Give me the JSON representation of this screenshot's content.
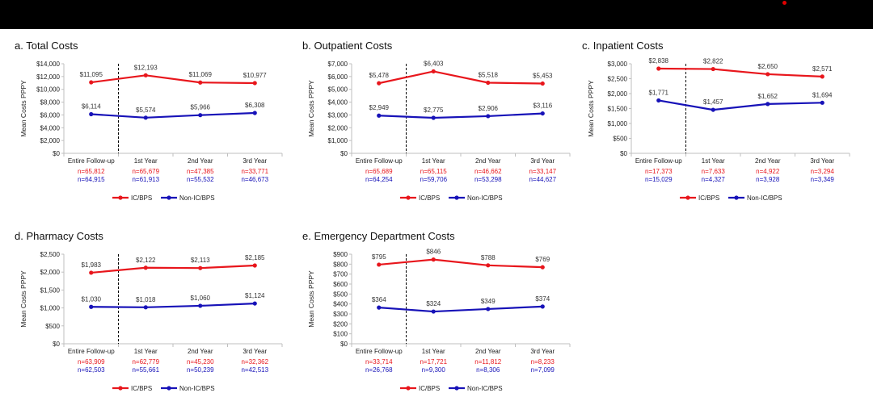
{
  "colors": {
    "series1": "#e8161c",
    "series2": "#1712b8"
  },
  "chart_data": [
    {
      "type": "line",
      "title": "a. Total Costs",
      "ylabel": "Mean Costs PPPY",
      "ylim": [
        0,
        14000
      ],
      "yticks": [
        "$0",
        "$2,000",
        "$4,000",
        "$6,000",
        "$8,000",
        "$10,000",
        "$12,000",
        "$14,000"
      ],
      "categories": [
        "Entire Follow-up",
        "1st Year",
        "2nd Year",
        "3rd Year"
      ],
      "series": [
        {
          "name": "IC/BPS",
          "values": [
            11095,
            12193,
            11069,
            10977
          ],
          "labels": [
            "$11,095",
            "$12,193",
            "$11,069",
            "$10,977"
          ],
          "n": [
            "n=65,812",
            "n=65,679",
            "n=47,385",
            "n=33,771"
          ]
        },
        {
          "name": "Non-IC/BPS",
          "values": [
            6114,
            5574,
            5966,
            6308
          ],
          "labels": [
            "$6,114",
            "$5,574",
            "$5,966",
            "$6,308"
          ],
          "n": [
            "n=64,915",
            "n=61,913",
            "n=55,532",
            "n=46,673"
          ]
        }
      ]
    },
    {
      "type": "line",
      "title": "b. Outpatient Costs",
      "ylabel": "Mean Costs PPPY",
      "ylim": [
        0,
        7000
      ],
      "yticks": [
        "$0",
        "$1,000",
        "$2,000",
        "$3,000",
        "$4,000",
        "$5,000",
        "$6,000",
        "$7,000"
      ],
      "categories": [
        "Entire Follow-up",
        "1st Year",
        "2nd Year",
        "3rd Year"
      ],
      "series": [
        {
          "name": "IC/BPS",
          "values": [
            5478,
            6403,
            5518,
            5453
          ],
          "labels": [
            "$5,478",
            "$6,403",
            "$5,518",
            "$5,453"
          ],
          "n": [
            "n=65,689",
            "n=65,115",
            "n=46,662",
            "n=33,147"
          ]
        },
        {
          "name": "Non-IC/BPS",
          "values": [
            2949,
            2775,
            2906,
            3116
          ],
          "labels": [
            "$2,949",
            "$2,775",
            "$2,906",
            "$3,116"
          ],
          "n": [
            "n=64,254",
            "n=59,706",
            "n=53,298",
            "n=44,627"
          ]
        }
      ]
    },
    {
      "type": "line",
      "title": "c. Inpatient Costs",
      "ylabel": "Mean Costs PPPY",
      "ylim": [
        0,
        3000
      ],
      "yticks": [
        "$0",
        "$500",
        "$1,000",
        "$1,500",
        "$2,000",
        "$2,500",
        "$3,000"
      ],
      "categories": [
        "Entire Follow-up",
        "1st Year",
        "2nd Year",
        "3rd Year"
      ],
      "series": [
        {
          "name": "IC/BPS",
          "values": [
            2838,
            2822,
            2650,
            2571
          ],
          "labels": [
            "$2,838",
            "$2,822",
            "$2,650",
            "$2,571"
          ],
          "n": [
            "n=17,373",
            "n=7,633",
            "n=4,922",
            "n=3,294"
          ]
        },
        {
          "name": "Non-IC/BPS",
          "values": [
            1771,
            1457,
            1652,
            1694
          ],
          "labels": [
            "$1,771",
            "$1,457",
            "$1,652",
            "$1,694"
          ],
          "n": [
            "n=15,029",
            "n=4,327",
            "n=3,928",
            "n=3,349"
          ]
        }
      ]
    },
    {
      "type": "line",
      "title": "d. Pharmacy Costs",
      "ylabel": "Mean Costs PPPY",
      "ylim": [
        0,
        2500
      ],
      "yticks": [
        "$0",
        "$500",
        "$1,000",
        "$1,500",
        "$2,000",
        "$2,500"
      ],
      "categories": [
        "Entire Follow-up",
        "1st Year",
        "2nd Year",
        "3rd Year"
      ],
      "series": [
        {
          "name": "IC/BPS",
          "values": [
            1983,
            2122,
            2113,
            2185
          ],
          "labels": [
            "$1,983",
            "$2,122",
            "$2,113",
            "$2,185"
          ],
          "n": [
            "n=63,909",
            "n=62,779",
            "n=45,230",
            "n=32,362"
          ]
        },
        {
          "name": "Non-IC/BPS",
          "values": [
            1030,
            1018,
            1060,
            1124
          ],
          "labels": [
            "$1,030",
            "$1,018",
            "$1,060",
            "$1,124"
          ],
          "n": [
            "n=62,503",
            "n=55,661",
            "n=50,239",
            "n=42,513"
          ]
        }
      ]
    },
    {
      "type": "line",
      "title": "e. Emergency Department Costs",
      "ylabel": "Mean Costs PPPY",
      "ylim": [
        0,
        900
      ],
      "yticks": [
        "$0",
        "$100",
        "$200",
        "$300",
        "$400",
        "$500",
        "$600",
        "$700",
        "$800",
        "$900"
      ],
      "categories": [
        "Entire Follow-up",
        "1st Year",
        "2nd Year",
        "3rd Year"
      ],
      "series": [
        {
          "name": "IC/BPS",
          "values": [
            795,
            846,
            788,
            769
          ],
          "labels": [
            "$795",
            "$846",
            "$788",
            "$769"
          ],
          "n": [
            "n=33,714",
            "n=17,721",
            "n=11,812",
            "n=8,233"
          ]
        },
        {
          "name": "Non-IC/BPS",
          "values": [
            364,
            324,
            349,
            374
          ],
          "labels": [
            "$364",
            "$324",
            "$349",
            "$374"
          ],
          "n": [
            "n=26,768",
            "n=9,300",
            "n=8,306",
            "n=7,099"
          ]
        }
      ]
    }
  ]
}
